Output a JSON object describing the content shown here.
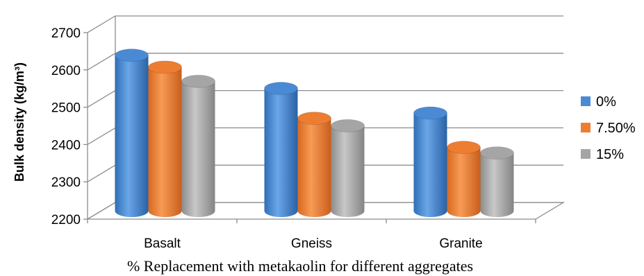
{
  "chart_data": {
    "type": "bar",
    "style": "3d-cylinder",
    "categories": [
      "Basalt",
      "Gneiss",
      "Granite"
    ],
    "series": [
      {
        "name": "0%",
        "values": [
          2617,
          2528,
          2462
        ],
        "color": "#4a8ad4"
      },
      {
        "name": "7.50%",
        "values": [
          2585,
          2448,
          2370
        ],
        "color": "#ed7d31"
      },
      {
        "name": "15%",
        "values": [
          2547,
          2428,
          2355
        ],
        "color": "#a5a5a5"
      }
    ],
    "title": "",
    "xlabel": "%  Replacement with metakaolin for  different aggregates",
    "ylabel": "Bulk density (kg/m³)",
    "ylim": [
      2200,
      2700
    ],
    "yticks": [
      2200,
      2300,
      2400,
      2500,
      2600,
      2700
    ],
    "grid": true,
    "legend_position": "right"
  }
}
